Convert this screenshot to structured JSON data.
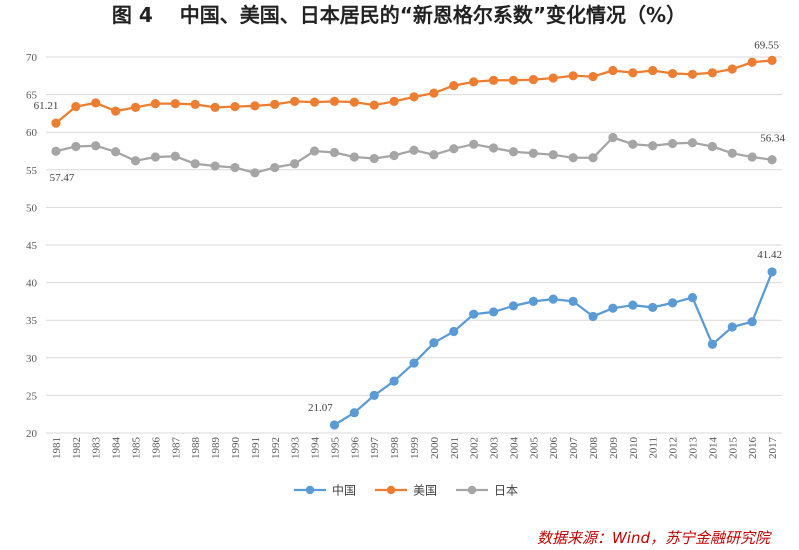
{
  "chart_data": {
    "type": "line",
    "title": "图 4　 中国、美国、日本居民的“新恩格尔系数”变化情况（%）",
    "ylim": [
      20,
      70
    ],
    "yticks": [
      20,
      25,
      30,
      35,
      40,
      45,
      50,
      55,
      60,
      65,
      70
    ],
    "grid": true,
    "legend_position": "bottom-center",
    "categories": [
      "1981",
      "1982",
      "1983",
      "1984",
      "1985",
      "1986",
      "1987",
      "1988",
      "1989",
      "1990",
      "1991",
      "1992",
      "1993",
      "1994",
      "1995",
      "1996",
      "1997",
      "1998",
      "1999",
      "2000",
      "2001",
      "2002",
      "2003",
      "2004",
      "2005",
      "2006",
      "2007",
      "2008",
      "2009",
      "2010",
      "2011",
      "2012",
      "2013",
      "2014",
      "2015",
      "2016",
      "2017"
    ],
    "series": [
      {
        "name": "中国",
        "color": "#5b9bd5",
        "values": [
          null,
          null,
          null,
          null,
          null,
          null,
          null,
          null,
          null,
          null,
          null,
          null,
          null,
          null,
          21.07,
          22.7,
          25.0,
          26.9,
          29.3,
          32.0,
          33.5,
          35.8,
          36.1,
          36.9,
          37.5,
          37.8,
          37.5,
          35.5,
          36.6,
          37.0,
          36.7,
          37.3,
          38.0,
          31.8,
          34.1,
          34.8,
          41.42
        ]
      },
      {
        "name": "美国",
        "color": "#ed7d31",
        "values": [
          61.21,
          63.4,
          63.9,
          62.8,
          63.3,
          63.8,
          63.8,
          63.7,
          63.3,
          63.4,
          63.5,
          63.7,
          64.1,
          64.0,
          64.1,
          64.0,
          63.6,
          64.1,
          64.7,
          65.2,
          66.2,
          66.7,
          66.9,
          66.9,
          67.0,
          67.2,
          67.5,
          67.4,
          68.2,
          67.9,
          68.2,
          67.8,
          67.7,
          67.9,
          68.4,
          69.3,
          69.55
        ]
      },
      {
        "name": "日本",
        "color": "#a5a5a5",
        "values": [
          57.47,
          58.1,
          58.2,
          57.4,
          56.2,
          56.7,
          56.8,
          55.8,
          55.5,
          55.3,
          54.6,
          55.3,
          55.8,
          57.5,
          57.3,
          56.7,
          56.5,
          56.9,
          57.6,
          57.0,
          57.8,
          58.4,
          57.9,
          57.4,
          57.2,
          57.0,
          56.6,
          56.6,
          59.3,
          58.4,
          58.2,
          58.5,
          58.6,
          58.1,
          57.2,
          56.7,
          56.34
        ]
      }
    ],
    "annotations": [
      {
        "series": 1,
        "index": 0,
        "text": "61.21"
      },
      {
        "series": 1,
        "index": 36,
        "text": "69.55"
      },
      {
        "series": 2,
        "index": 0,
        "text": "57.47"
      },
      {
        "series": 2,
        "index": 36,
        "text": "56.34"
      },
      {
        "series": 0,
        "index": 14,
        "text": "21.07"
      },
      {
        "series": 0,
        "index": 36,
        "text": "41.42"
      }
    ]
  },
  "source_note": "数据来源：Wind，苏宁金融研究院"
}
